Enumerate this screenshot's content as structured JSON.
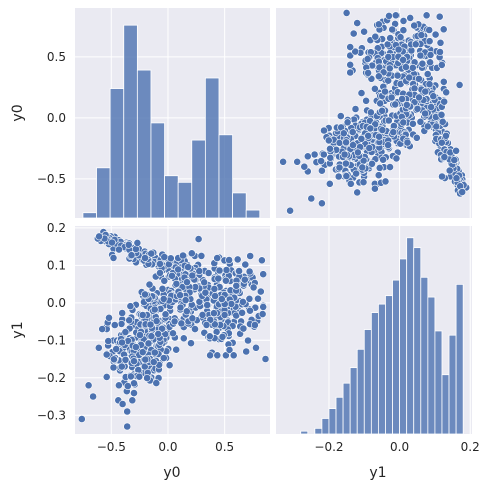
{
  "chart_data": {
    "type": "pairplot",
    "variables": [
      "y0",
      "y1"
    ],
    "colors": {
      "marker": "#4c72b0",
      "hist": "#4c72b0",
      "background": "#eaeaf2",
      "grid": "#ffffff"
    },
    "grid": true,
    "y0_axis": {
      "lim": [
        -0.82,
        0.9
      ],
      "ticks": [
        -0.5,
        0.0,
        0.5
      ],
      "tick_labels": [
        "−0.5",
        "0.0",
        "0.5"
      ]
    },
    "y1_axis": {
      "lim": [
        -0.35,
        0.205
      ],
      "ticks": [
        -0.3,
        -0.2,
        -0.1,
        0.0,
        0.1,
        0.2
      ],
      "tick_labels": [
        "−0.3",
        "−0.2",
        "−0.1",
        "0.0",
        "0.1",
        "0.2"
      ]
    },
    "y1_xticks": [
      -0.2,
      0.0,
      0.2
    ],
    "y1_xtick_labels": [
      "−0.2",
      "0.0",
      "0.2"
    ],
    "hist_y0": {
      "bin_edges": [
        -0.75,
        -0.63,
        -0.51,
        -0.39,
        -0.27,
        -0.15,
        -0.03,
        0.09,
        0.21,
        0.33,
        0.45,
        0.57,
        0.69,
        0.81
      ],
      "counts": [
        4,
        38,
        98,
        146,
        112,
        72,
        32,
        27,
        59,
        106,
        63,
        19,
        6
      ]
    },
    "hist_y1": {
      "bin_edges": [
        -0.28,
        -0.26,
        -0.24,
        -0.22,
        -0.2,
        -0.18,
        -0.16,
        -0.14,
        -0.12,
        -0.1,
        -0.08,
        -0.06,
        -0.04,
        -0.02,
        0.0,
        0.02,
        0.04,
        0.06,
        0.08,
        0.1,
        0.12,
        0.14,
        0.16,
        0.18
      ],
      "counts": [
        2,
        0,
        4,
        11,
        18,
        26,
        36,
        47,
        60,
        74,
        86,
        92,
        98,
        109,
        124,
        139,
        132,
        111,
        97,
        73,
        42,
        70,
        106
      ]
    },
    "clusters": [
      {
        "n": 320,
        "y0_range": [
          -0.52,
          0.12
        ],
        "y1_range": [
          -0.24,
          0.05
        ],
        "shape": "main blob"
      },
      {
        "n": 120,
        "y0_range": [
          -0.62,
          0.1
        ],
        "y1_range": [
          0.07,
          0.18
        ],
        "shape": "top arc"
      },
      {
        "n": 230,
        "y0_range": [
          0.2,
          0.82
        ],
        "y1_range": [
          -0.12,
          0.12
        ],
        "shape": "right blob"
      },
      {
        "n": 80,
        "y0_range": [
          -0.05,
          0.3
        ],
        "y1_range": [
          -0.05,
          0.15
        ],
        "shape": "bridge"
      }
    ],
    "outliers": [
      {
        "y0": -0.76,
        "y1": -0.31
      },
      {
        "y0": -0.7,
        "y1": -0.22
      },
      {
        "y0": -0.66,
        "y1": -0.25
      },
      {
        "y0": -0.61,
        "y1": -0.12
      },
      {
        "y0": -0.58,
        "y1": -0.07
      },
      {
        "y0": -0.52,
        "y1": -0.04
      },
      {
        "y0": -0.36,
        "y1": -0.33
      },
      {
        "y0": -0.36,
        "y1": -0.29
      },
      {
        "y0": -0.4,
        "y1": -0.27
      },
      {
        "y0": 0.27,
        "y1": 0.17
      },
      {
        "y0": 0.86,
        "y1": -0.15
      },
      {
        "y0": -0.48,
        "y1": 0.12
      },
      {
        "y0": -0.27,
        "y1": 0.16
      },
      {
        "y0": 0.69,
        "y1": -0.13
      },
      {
        "y0": 0.58,
        "y1": -0.14
      }
    ]
  }
}
